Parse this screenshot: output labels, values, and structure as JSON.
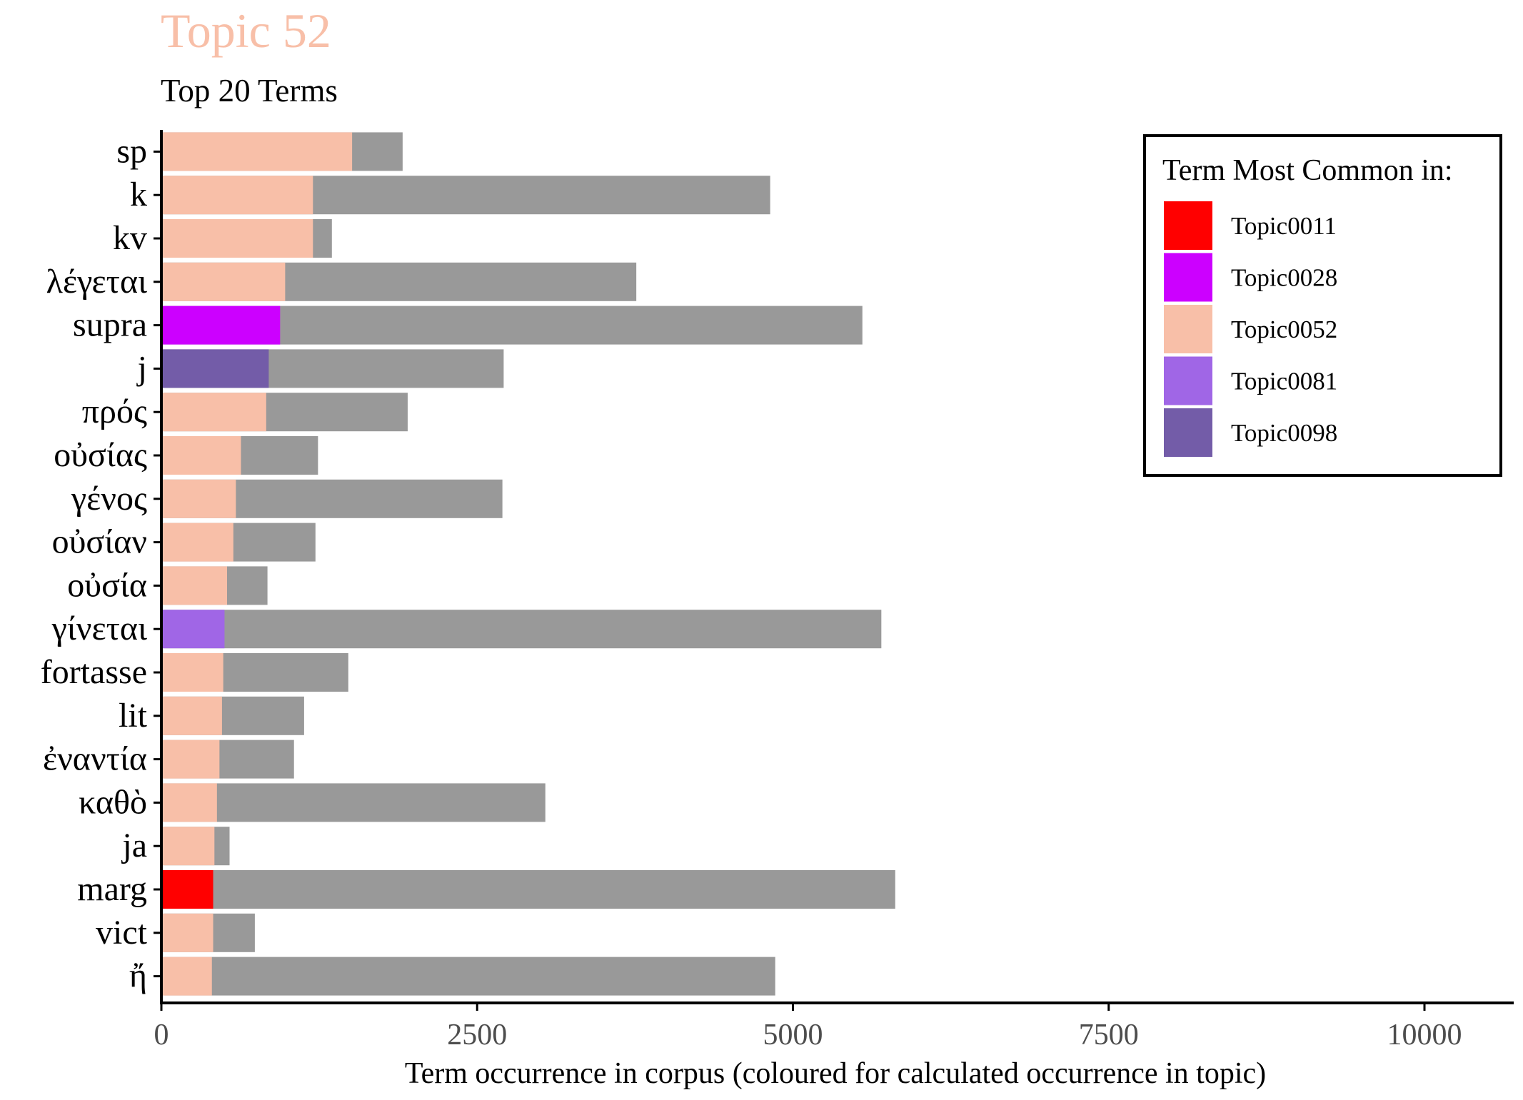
{
  "chart_data": {
    "type": "bar",
    "orientation": "horizontal",
    "title": "Topic 52",
    "subtitle": "Top 20 Terms",
    "xlabel": "Term occurrence in corpus (coloured for calculated occurrence in topic)",
    "ylabel": "",
    "xlim": [
      0,
      10700
    ],
    "x_ticks": [
      0,
      2500,
      5000,
      7500,
      10000
    ],
    "x_tick_labels": [
      "0",
      "2500",
      "5000",
      "7500",
      "10000"
    ],
    "grid": false,
    "legend": {
      "title": "Term Most Common in:",
      "placement": "top-right",
      "entries": [
        {
          "name": "Topic0011",
          "color": "#ff0000"
        },
        {
          "name": "Topic0028",
          "color": "#cc00ff"
        },
        {
          "name": "Topic0052",
          "color": "#f8bfa8"
        },
        {
          "name": "Topic0081",
          "color": "#a066e6"
        },
        {
          "name": "Topic0098",
          "color": "#735ca8"
        }
      ]
    },
    "corpus_color": "#999999",
    "title_color": "#f8bfa8",
    "categories": [
      "sp",
      "k",
      "kv",
      "λέγεται",
      "supra",
      "j",
      "πρός",
      "οὐσίας",
      "γένος",
      "οὐσίαν",
      "οὐσία",
      "γίνεται",
      "fortasse",
      "lit",
      "ἐναντία",
      "καθὸ",
      "ja",
      "marg",
      "vict",
      "ἤ"
    ],
    "series": [
      {
        "name": "Term occurrence in corpus",
        "values": [
          1910,
          4820,
          1350,
          3760,
          5550,
          2710,
          1950,
          1240,
          2700,
          1220,
          840,
          5700,
          1480,
          1130,
          1050,
          3040,
          540,
          5810,
          740,
          4860
        ]
      },
      {
        "name": "Calculated occurrence in topic",
        "values": [
          1510,
          1200,
          1200,
          980,
          940,
          850,
          830,
          630,
          590,
          570,
          520,
          500,
          490,
          480,
          460,
          440,
          420,
          410,
          410,
          400
        ],
        "colors": [
          "#f8bfa8",
          "#f8bfa8",
          "#f8bfa8",
          "#f8bfa8",
          "#cc00ff",
          "#735ca8",
          "#f8bfa8",
          "#f8bfa8",
          "#f8bfa8",
          "#f8bfa8",
          "#f8bfa8",
          "#a066e6",
          "#f8bfa8",
          "#f8bfa8",
          "#f8bfa8",
          "#f8bfa8",
          "#f8bfa8",
          "#ff0000",
          "#f8bfa8",
          "#f8bfa8"
        ]
      }
    ]
  }
}
